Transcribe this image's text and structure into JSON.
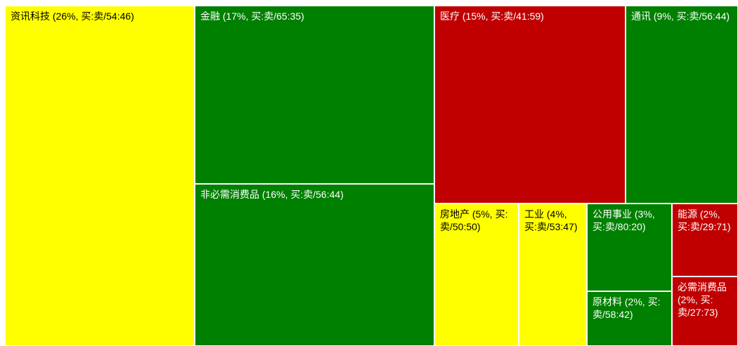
{
  "chart_data": {
    "type": "treemap",
    "colors": {
      "yellow": "#FFFF00",
      "green": "#008000",
      "red": "#C00000"
    },
    "cells": [
      {
        "label": "资讯科技 (26%, 买:卖/54:46)",
        "share": 26,
        "buy": 54,
        "sell": 46,
        "color": "yellow"
      },
      {
        "label": "金融 (17%, 买:卖/65:35)",
        "share": 17,
        "buy": 65,
        "sell": 35,
        "color": "green"
      },
      {
        "label": "非必需消费品 (16%, 买:卖/56:44)",
        "share": 16,
        "buy": 56,
        "sell": 44,
        "color": "green"
      },
      {
        "label": "医疗 (15%, 买:卖/41:59)",
        "share": 15,
        "buy": 41,
        "sell": 59,
        "color": "red"
      },
      {
        "label": "通讯 (9%, 买:卖/56:44)",
        "share": 9,
        "buy": 56,
        "sell": 44,
        "color": "green"
      },
      {
        "label": "房地产 (5%, 买:卖/50:50)",
        "share": 5,
        "buy": 50,
        "sell": 50,
        "color": "yellow"
      },
      {
        "label": "工业 (4%, 买:卖/53:47)",
        "share": 4,
        "buy": 53,
        "sell": 47,
        "color": "yellow"
      },
      {
        "label": "公用事业 (3%, 买:卖/80:20)",
        "share": 3,
        "buy": 80,
        "sell": 20,
        "color": "green"
      },
      {
        "label": "能源 (2%, 买:卖/29:71)",
        "share": 2,
        "buy": 29,
        "sell": 71,
        "color": "red"
      },
      {
        "label": "原材料 (2%, 买:卖/58:42)",
        "share": 2,
        "buy": 58,
        "sell": 42,
        "color": "green"
      },
      {
        "label": "必需消费品 (2%, 买:卖/27:73)",
        "share": 2,
        "buy": 27,
        "sell": 73,
        "color": "red"
      }
    ]
  }
}
